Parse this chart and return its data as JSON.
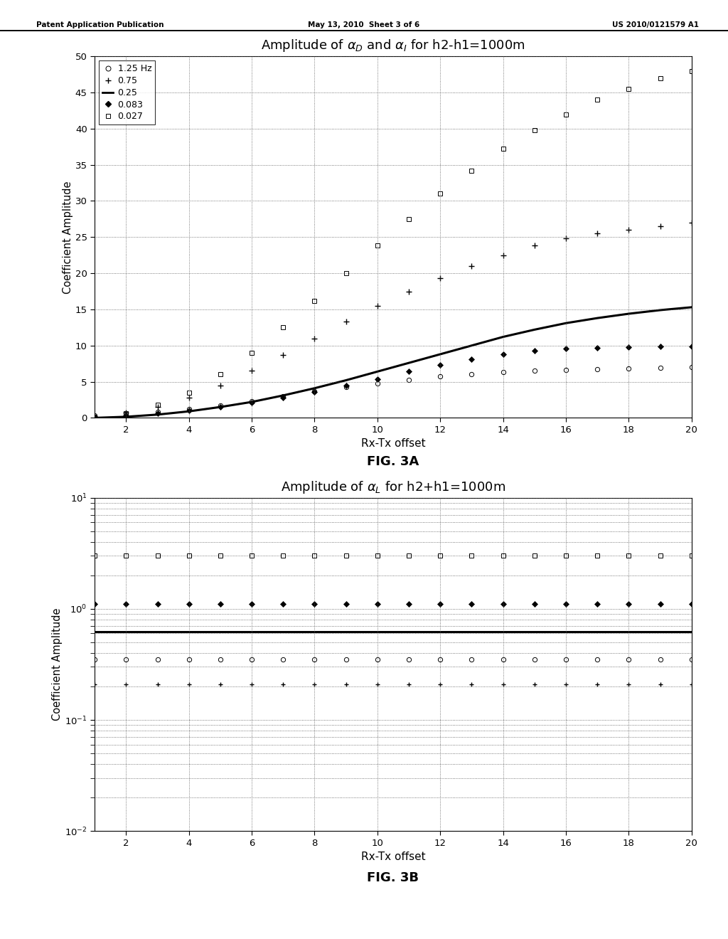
{
  "header_left": "Patent Application Publication",
  "header_mid": "May 13, 2010  Sheet 3 of 6",
  "header_right": "US 2010/0121579 A1",
  "fig3a_title": "Amplitude of $\\alpha_D$ and $\\alpha_I$ for h2-h1=1000m",
  "fig3a_xlabel": "Rx-Tx offset",
  "fig3a_ylabel": "Coefficient Amplitude",
  "fig3a_ylim": [
    0,
    50
  ],
  "fig3a_xlim": [
    1,
    20
  ],
  "fig3a_yticks": [
    0,
    5,
    10,
    15,
    20,
    25,
    30,
    35,
    40,
    45,
    50
  ],
  "fig3a_xticks": [
    2,
    4,
    6,
    8,
    10,
    12,
    14,
    16,
    18,
    20
  ],
  "fig3a_label": "FIG. 3A",
  "fig3b_title": "Amplitude of $\\alpha_L$ for h2+h1=1000m",
  "fig3b_xlabel": "Rx-Tx offset",
  "fig3b_ylabel": "Coefficient Amplitude",
  "fig3b_xlim": [
    1,
    20
  ],
  "fig3b_xticks": [
    2,
    4,
    6,
    8,
    10,
    12,
    14,
    16,
    18,
    20
  ],
  "fig3b_label": "FIG. 3B",
  "x_values": [
    1,
    2,
    3,
    4,
    5,
    6,
    7,
    8,
    9,
    10,
    11,
    12,
    13,
    14,
    15,
    16,
    17,
    18,
    19,
    20
  ],
  "fig3a_1p25Hz": [
    0.3,
    0.5,
    0.8,
    1.2,
    1.7,
    2.3,
    3.0,
    3.7,
    4.3,
    4.8,
    5.3,
    5.7,
    6.0,
    6.3,
    6.5,
    6.6,
    6.7,
    6.8,
    6.9,
    7.0
  ],
  "fig3a_0p75": [
    0.2,
    0.7,
    1.5,
    2.8,
    4.5,
    6.5,
    8.7,
    11.0,
    13.3,
    15.5,
    17.5,
    19.3,
    21.0,
    22.5,
    23.8,
    24.8,
    25.5,
    26.0,
    26.5,
    27.0
  ],
  "fig3a_0p25": [
    0.0,
    0.15,
    0.45,
    0.9,
    1.5,
    2.2,
    3.1,
    4.1,
    5.2,
    6.4,
    7.6,
    8.8,
    10.0,
    11.2,
    12.2,
    13.1,
    13.8,
    14.4,
    14.9,
    15.3
  ],
  "fig3a_0p083": [
    0.1,
    0.3,
    0.6,
    1.0,
    1.5,
    2.1,
    2.8,
    3.6,
    4.5,
    5.4,
    6.4,
    7.3,
    8.1,
    8.8,
    9.3,
    9.6,
    9.7,
    9.8,
    9.85,
    9.9
  ],
  "fig3a_0p027": [
    0.1,
    0.6,
    1.8,
    3.5,
    6.0,
    9.0,
    12.5,
    16.2,
    20.0,
    23.8,
    27.5,
    31.0,
    34.2,
    37.2,
    39.8,
    42.0,
    44.0,
    45.5,
    47.0,
    48.0
  ],
  "fig3b_1p25Hz": [
    0.35,
    0.35,
    0.35,
    0.35,
    0.35,
    0.35,
    0.35,
    0.35,
    0.35,
    0.35,
    0.35,
    0.35,
    0.35,
    0.35,
    0.35,
    0.35,
    0.35,
    0.35,
    0.35,
    0.35
  ],
  "fig3b_0p75": [
    3.0,
    3.0,
    3.0,
    3.0,
    3.0,
    3.0,
    3.0,
    3.0,
    3.0,
    3.0,
    3.0,
    3.0,
    3.0,
    3.0,
    3.0,
    3.0,
    3.0,
    3.0,
    3.0,
    3.0
  ],
  "fig3b_0p25": [
    0.62,
    0.62,
    0.62,
    0.62,
    0.62,
    0.62,
    0.62,
    0.62,
    0.62,
    0.62,
    0.62,
    0.62,
    0.62,
    0.62,
    0.62,
    0.62,
    0.62,
    0.62,
    0.62,
    0.62
  ],
  "fig3b_0p083": [
    1.1,
    1.1,
    1.1,
    1.1,
    1.1,
    1.1,
    1.1,
    1.1,
    1.1,
    1.1,
    1.1,
    1.1,
    1.1,
    1.1,
    1.1,
    1.1,
    1.1,
    1.1,
    1.1,
    1.1
  ],
  "fig3b_0p027": [
    0.21,
    0.21,
    0.21,
    0.21,
    0.21,
    0.21,
    0.21,
    0.21,
    0.21,
    0.21,
    0.21,
    0.21,
    0.21,
    0.21,
    0.21,
    0.21,
    0.21,
    0.21,
    0.21,
    0.21
  ]
}
